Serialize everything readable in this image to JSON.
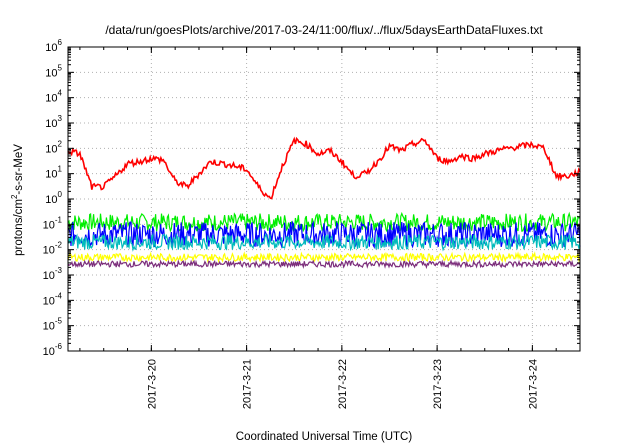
{
  "chart_data": {
    "type": "line",
    "title": "/data/run/goesPlots/archive/2017-03-24/11:00/flux/../flux/5daysEarthDataFluxes.txt",
    "xlabel": "Coordinated Universal Time (UTC)",
    "ylabel_parts": [
      "protons/cm",
      "2",
      "-s-sr-MeV"
    ],
    "y_scale": "log",
    "ylim": [
      1e-06,
      1000000.0
    ],
    "y_ticks": [
      {
        "base": "10",
        "exp": "-6",
        "value": 1e-06
      },
      {
        "base": "10",
        "exp": "-5",
        "value": 1e-05
      },
      {
        "base": "10",
        "exp": "-4",
        "value": 0.0001
      },
      {
        "base": "10",
        "exp": "-3",
        "value": 0.001
      },
      {
        "base": "10",
        "exp": "-2",
        "value": 0.01
      },
      {
        "base": "10",
        "exp": "-1",
        "value": 0.1
      },
      {
        "base": "10",
        "exp": "0",
        "value": 1
      },
      {
        "base": "10",
        "exp": "1",
        "value": 10
      },
      {
        "base": "10",
        "exp": "2",
        "value": 100
      },
      {
        "base": "10",
        "exp": "3",
        "value": 1000
      },
      {
        "base": "10",
        "exp": "4",
        "value": 10000
      },
      {
        "base": "10",
        "exp": "5",
        "value": 100000
      },
      {
        "base": "10",
        "exp": "6",
        "value": 1000000
      }
    ],
    "x_range": [
      "2017-03-19 03:00",
      "2017-03-24 12:00"
    ],
    "x_ticks": [
      {
        "label": "2017-3-20",
        "value": "2017-03-20 00:00"
      },
      {
        "label": "2017-3-21",
        "value": "2017-03-21 00:00"
      },
      {
        "label": "2017-3-22",
        "value": "2017-03-22 00:00"
      },
      {
        "label": "2017-3-23",
        "value": "2017-03-23 00:00"
      },
      {
        "label": "2017-3-24",
        "value": "2017-03-24 00:00"
      }
    ],
    "grid": true,
    "series": [
      {
        "color": "#ff0000",
        "x": [
          "2017-03-19 03:00",
          "2017-03-19 06:00",
          "2017-03-19 09:00",
          "2017-03-19 12:00",
          "2017-03-19 15:00",
          "2017-03-19 18:00",
          "2017-03-19 21:00",
          "2017-03-20 00:00",
          "2017-03-20 03:00",
          "2017-03-20 06:00",
          "2017-03-20 09:00",
          "2017-03-20 12:00",
          "2017-03-20 15:00",
          "2017-03-20 18:00",
          "2017-03-20 21:00",
          "2017-03-21 00:00",
          "2017-03-21 03:00",
          "2017-03-21 06:00",
          "2017-03-21 09:00",
          "2017-03-21 12:00",
          "2017-03-21 15:00",
          "2017-03-21 18:00",
          "2017-03-21 21:00",
          "2017-03-22 00:00",
          "2017-03-22 03:00",
          "2017-03-22 06:00",
          "2017-03-22 09:00",
          "2017-03-22 12:00",
          "2017-03-22 15:00",
          "2017-03-22 18:00",
          "2017-03-22 21:00",
          "2017-03-23 00:00",
          "2017-03-23 03:00",
          "2017-03-23 06:00",
          "2017-03-23 09:00",
          "2017-03-23 12:00",
          "2017-03-23 15:00",
          "2017-03-23 18:00",
          "2017-03-23 21:00",
          "2017-03-24 00:00",
          "2017-03-24 03:00",
          "2017-03-24 06:00",
          "2017-03-24 09:00",
          "2017-03-24 12:00"
        ],
        "values": [
          80,
          60,
          3,
          3,
          8,
          25,
          30,
          40,
          35,
          5,
          3,
          10,
          30,
          25,
          20,
          15,
          3,
          1,
          20,
          200,
          150,
          60,
          80,
          30,
          8,
          10,
          30,
          120,
          80,
          150,
          200,
          40,
          30,
          50,
          40,
          60,
          80,
          100,
          120,
          140,
          100,
          8,
          8,
          12
        ]
      },
      {
        "color": "#00ee00",
        "values_mean": 0.12
      },
      {
        "color": "#0000ff",
        "values_mean": 0.04
      },
      {
        "color": "#00bbbb",
        "values_mean": 0.02
      },
      {
        "color": "#ffff00",
        "values_mean": 0.005
      },
      {
        "color": "#7b2d7b",
        "values_mean": 0.0027
      }
    ]
  }
}
